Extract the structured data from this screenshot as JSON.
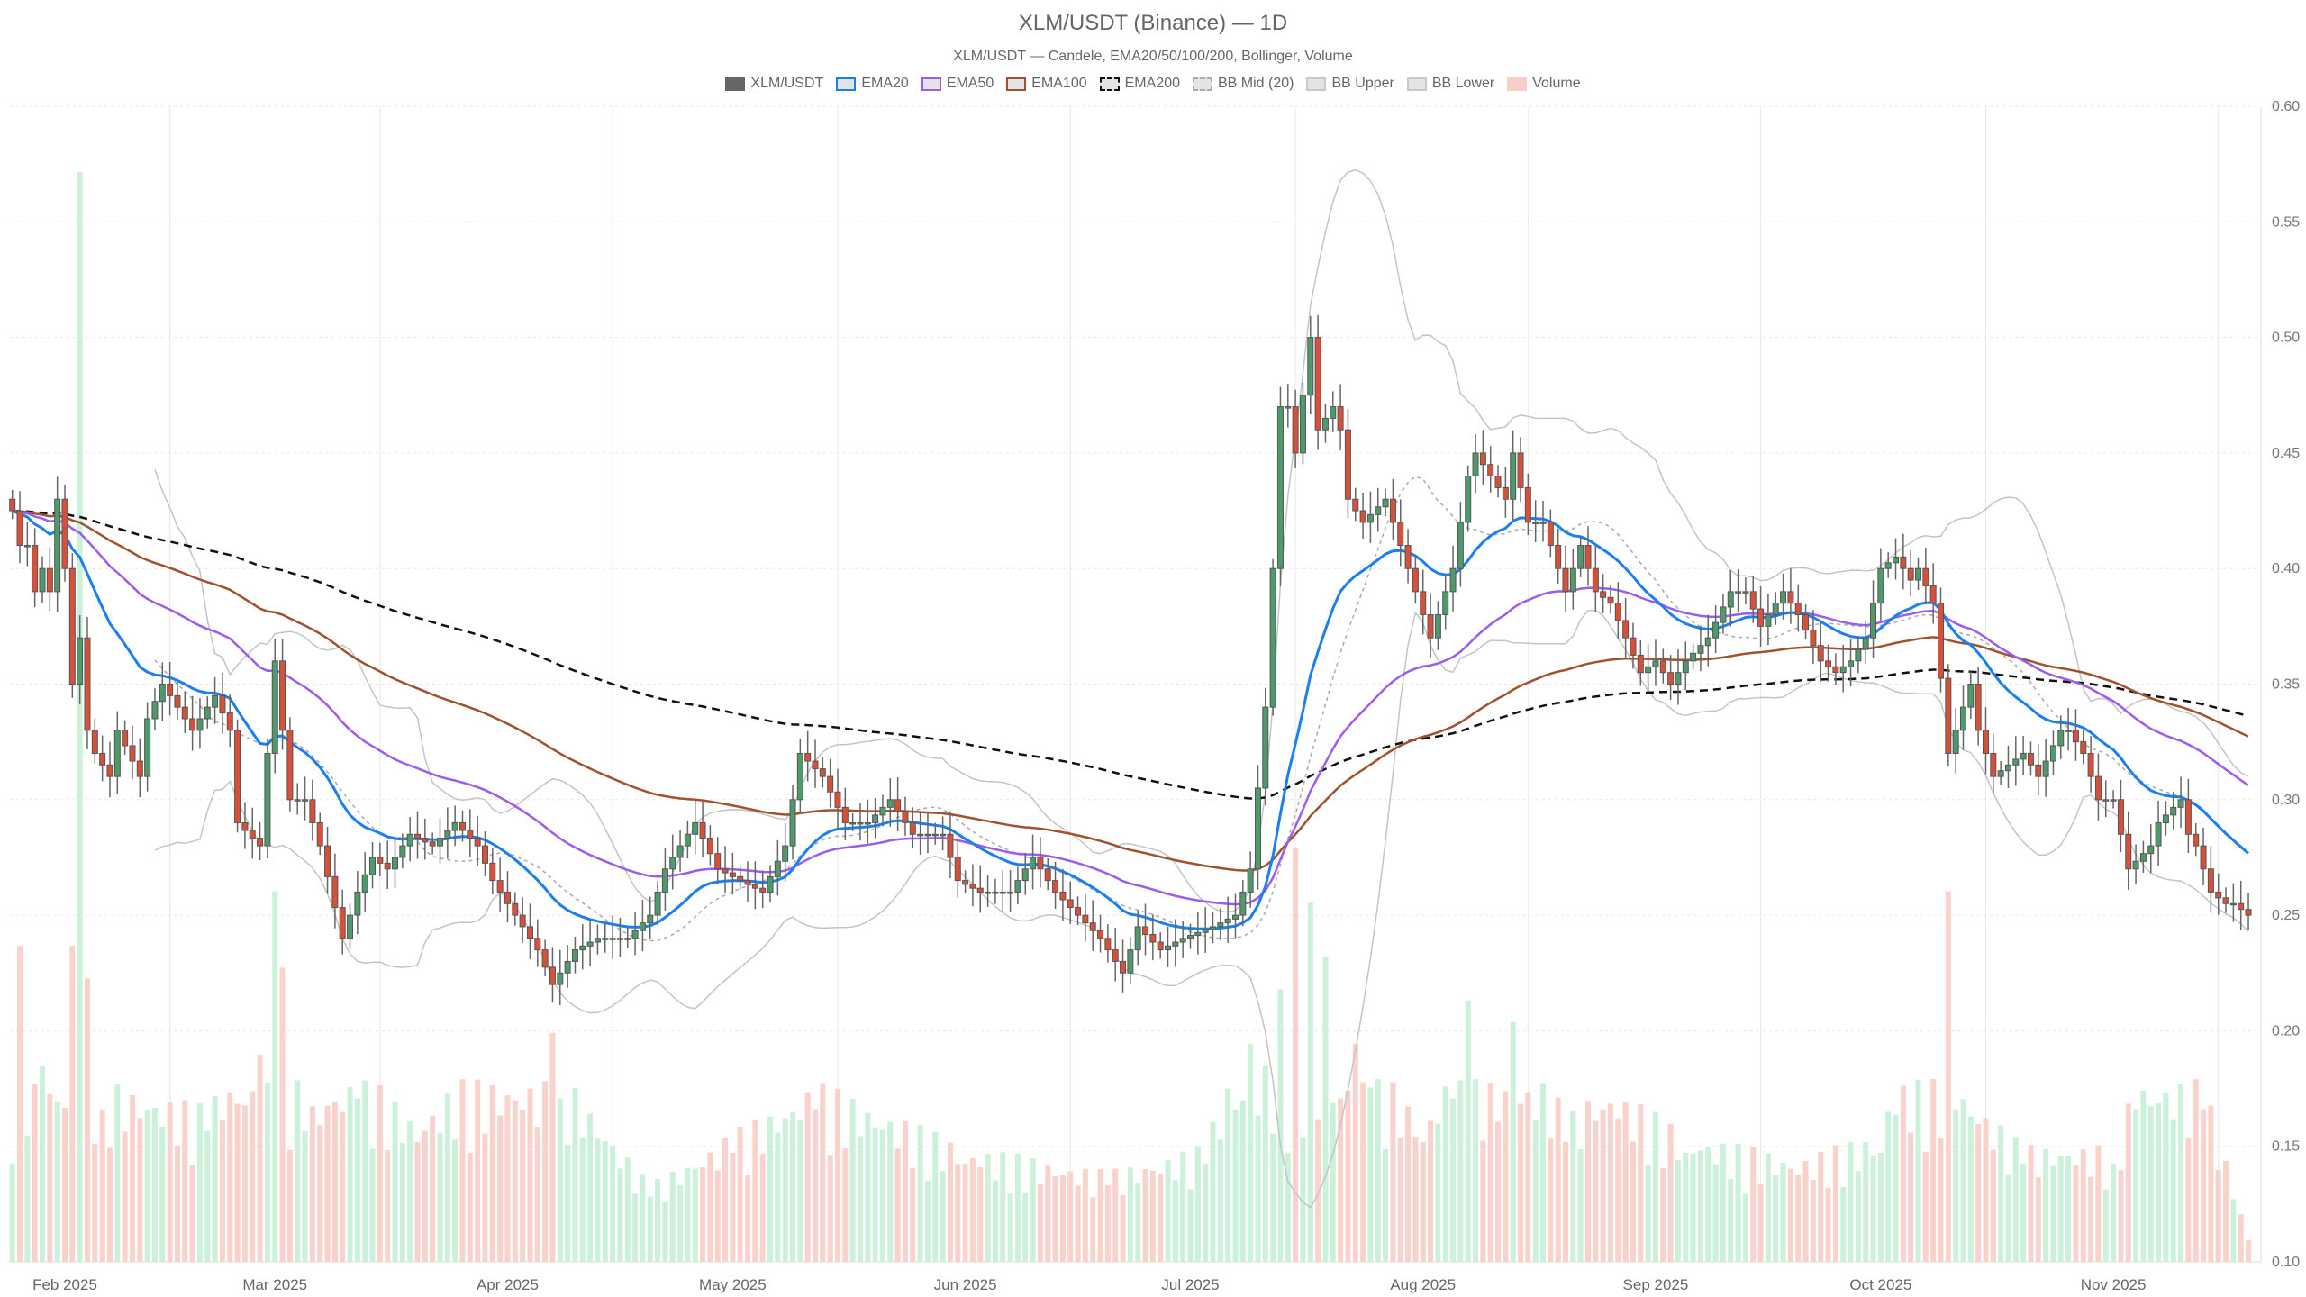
{
  "chart_data": {
    "type": "candlestick",
    "title": "XLM/USDT (Binance) — 1D",
    "subtitle": "XLM/USDT — Candele, EMA20/50/100/200, Bollinger, Volume",
    "legend": [
      {
        "name": "XLM/USDT",
        "color": "#666666",
        "style": "solid"
      },
      {
        "name": "EMA20",
        "color": "#1a7ff0",
        "style": "solid"
      },
      {
        "name": "EMA50",
        "color": "#9b5cf0",
        "style": "solid"
      },
      {
        "name": "EMA100",
        "color": "#a0522d",
        "style": "solid"
      },
      {
        "name": "EMA200",
        "color": "#111111",
        "style": "dashed"
      },
      {
        "name": "BB Mid (20)",
        "color": "#aaaaaa",
        "style": "dashed"
      },
      {
        "name": "BB Upper",
        "color": "#c8c8c8",
        "style": "solid"
      },
      {
        "name": "BB Lower",
        "color": "#c8c8c8",
        "style": "solid"
      },
      {
        "name": "Volume",
        "color": "#f8cfc8",
        "style": "solid"
      }
    ],
    "legend_placement": "top-center",
    "y_axis": {
      "side": "right",
      "range": [
        0.1,
        0.6
      ],
      "ticks": [
        "0.10",
        "0.15",
        "0.20",
        "0.25",
        "0.30",
        "0.35",
        "0.40",
        "0.45",
        "0.50",
        "0.55",
        "0.60"
      ]
    },
    "x_axis": {
      "range": [
        "2025-01-25",
        "2025-11-19"
      ],
      "ticks": [
        {
          "date": "2025-02-01",
          "label": "Feb 2025"
        },
        {
          "date": "2025-03-01",
          "label": "Mar 2025"
        },
        {
          "date": "2025-04-01",
          "label": "Apr 2025"
        },
        {
          "date": "2025-05-01",
          "label": "May 2025"
        },
        {
          "date": "2025-06-01",
          "label": "Jun 2025"
        },
        {
          "date": "2025-07-01",
          "label": "Jul 2025"
        },
        {
          "date": "2025-08-01",
          "label": "Aug 2025"
        },
        {
          "date": "2025-09-01",
          "label": "Sep 2025"
        },
        {
          "date": "2025-10-01",
          "label": "Oct 2025"
        },
        {
          "date": "2025-11-01",
          "label": "Nov 2025"
        }
      ]
    },
    "grid": true,
    "colors": {
      "up": "#4e9a6a",
      "down": "#d9503a",
      "volume_up": "#c6f0d6",
      "volume_down": "#f9cdc6"
    },
    "close": [
      [
        "2025-01-25",
        0.425
      ],
      [
        "2025-01-26",
        0.41
      ],
      [
        "2025-01-27",
        0.41
      ],
      [
        "2025-01-28",
        0.39
      ],
      [
        "2025-01-29",
        0.4
      ],
      [
        "2025-01-30",
        0.39
      ],
      [
        "2025-01-31",
        0.43
      ],
      [
        "2025-02-01",
        0.4
      ],
      [
        "2025-02-02",
        0.35
      ],
      [
        "2025-02-03",
        0.37
      ],
      [
        "2025-02-04",
        0.33
      ],
      [
        "2025-02-05",
        0.32
      ],
      [
        "2025-02-07",
        0.31
      ],
      [
        "2025-02-08",
        0.33
      ],
      [
        "2025-02-11",
        0.31
      ],
      [
        "2025-02-12",
        0.335
      ],
      [
        "2025-02-14",
        0.35
      ],
      [
        "2025-02-16",
        0.34
      ],
      [
        "2025-02-18",
        0.33
      ],
      [
        "2025-02-21",
        0.345
      ],
      [
        "2025-02-23",
        0.33
      ],
      [
        "2025-02-24",
        0.29
      ],
      [
        "2025-02-27",
        0.28
      ],
      [
        "2025-03-01",
        0.36
      ],
      [
        "2025-03-03",
        0.3
      ],
      [
        "2025-03-05",
        0.3
      ],
      [
        "2025-03-07",
        0.28
      ],
      [
        "2025-03-10",
        0.24
      ],
      [
        "2025-03-12",
        0.26
      ],
      [
        "2025-03-14",
        0.275
      ],
      [
        "2025-03-16",
        0.27
      ],
      [
        "2025-03-19",
        0.285
      ],
      [
        "2025-03-22",
        0.28
      ],
      [
        "2025-03-25",
        0.29
      ],
      [
        "2025-03-28",
        0.28
      ],
      [
        "2025-03-30",
        0.265
      ],
      [
        "2025-04-01",
        0.255
      ],
      [
        "2025-04-05",
        0.235
      ],
      [
        "2025-04-07",
        0.22
      ],
      [
        "2025-04-10",
        0.235
      ],
      [
        "2025-04-13",
        0.24
      ],
      [
        "2025-04-17",
        0.24
      ],
      [
        "2025-04-20",
        0.25
      ],
      [
        "2025-04-22",
        0.27
      ],
      [
        "2025-04-24",
        0.28
      ],
      [
        "2025-04-26",
        0.29
      ],
      [
        "2025-04-29",
        0.27
      ],
      [
        "2025-05-02",
        0.265
      ],
      [
        "2025-05-05",
        0.26
      ],
      [
        "2025-05-08",
        0.28
      ],
      [
        "2025-05-10",
        0.32
      ],
      [
        "2025-05-13",
        0.31
      ],
      [
        "2025-05-16",
        0.29
      ],
      [
        "2025-05-19",
        0.29
      ],
      [
        "2025-05-22",
        0.3
      ],
      [
        "2025-05-25",
        0.285
      ],
      [
        "2025-05-29",
        0.285
      ],
      [
        "2025-05-31",
        0.265
      ],
      [
        "2025-06-03",
        0.26
      ],
      [
        "2025-06-07",
        0.26
      ],
      [
        "2025-06-10",
        0.275
      ],
      [
        "2025-06-13",
        0.26
      ],
      [
        "2025-06-16",
        0.25
      ],
      [
        "2025-06-19",
        0.24
      ],
      [
        "2025-06-22",
        0.225
      ],
      [
        "2025-06-24",
        0.245
      ],
      [
        "2025-06-27",
        0.235
      ],
      [
        "2025-06-30",
        0.24
      ],
      [
        "2025-07-04",
        0.245
      ],
      [
        "2025-07-07",
        0.25
      ],
      [
        "2025-07-09",
        0.27
      ],
      [
        "2025-07-11",
        0.34
      ],
      [
        "2025-07-12",
        0.4
      ],
      [
        "2025-07-13",
        0.47
      ],
      [
        "2025-07-14",
        0.47
      ],
      [
        "2025-07-15",
        0.45
      ],
      [
        "2025-07-17",
        0.5
      ],
      [
        "2025-07-18",
        0.46
      ],
      [
        "2025-07-20",
        0.47
      ],
      [
        "2025-07-21",
        0.46
      ],
      [
        "2025-07-22",
        0.43
      ],
      [
        "2025-07-24",
        0.42
      ],
      [
        "2025-07-27",
        0.43
      ],
      [
        "2025-07-29",
        0.41
      ],
      [
        "2025-07-30",
        0.4
      ],
      [
        "2025-08-02",
        0.37
      ],
      [
        "2025-08-04",
        0.39
      ],
      [
        "2025-08-05",
        0.4
      ],
      [
        "2025-08-07",
        0.44
      ],
      [
        "2025-08-08",
        0.45
      ],
      [
        "2025-08-10",
        0.44
      ],
      [
        "2025-08-12",
        0.43
      ],
      [
        "2025-08-13",
        0.45
      ],
      [
        "2025-08-15",
        0.42
      ],
      [
        "2025-08-17",
        0.42
      ],
      [
        "2025-08-19",
        0.4
      ],
      [
        "2025-08-20",
        0.39
      ],
      [
        "2025-08-22",
        0.41
      ],
      [
        "2025-08-24",
        0.39
      ],
      [
        "2025-08-26",
        0.385
      ],
      [
        "2025-08-28",
        0.37
      ],
      [
        "2025-08-30",
        0.355
      ],
      [
        "2025-09-01",
        0.36
      ],
      [
        "2025-09-03",
        0.35
      ],
      [
        "2025-09-05",
        0.36
      ],
      [
        "2025-09-08",
        0.37
      ],
      [
        "2025-09-11",
        0.39
      ],
      [
        "2025-09-13",
        0.39
      ],
      [
        "2025-09-15",
        0.375
      ],
      [
        "2025-09-18",
        0.39
      ],
      [
        "2025-09-20",
        0.38
      ],
      [
        "2025-09-23",
        0.36
      ],
      [
        "2025-09-25",
        0.355
      ],
      [
        "2025-09-27",
        0.36
      ],
      [
        "2025-09-29",
        0.37
      ],
      [
        "2025-10-01",
        0.4
      ],
      [
        "2025-10-03",
        0.405
      ],
      [
        "2025-10-05",
        0.395
      ],
      [
        "2025-10-06",
        0.4
      ],
      [
        "2025-10-08",
        0.385
      ],
      [
        "2025-10-10",
        0.32
      ],
      [
        "2025-10-11",
        0.33
      ],
      [
        "2025-10-13",
        0.35
      ],
      [
        "2025-10-14",
        0.33
      ],
      [
        "2025-10-16",
        0.31
      ],
      [
        "2025-10-18",
        0.315
      ],
      [
        "2025-10-20",
        0.32
      ],
      [
        "2025-10-22",
        0.31
      ],
      [
        "2025-10-25",
        0.33
      ],
      [
        "2025-10-26",
        0.33
      ],
      [
        "2025-10-28",
        0.32
      ],
      [
        "2025-10-30",
        0.3
      ],
      [
        "2025-11-01",
        0.3
      ],
      [
        "2025-11-03",
        0.27
      ],
      [
        "2025-11-06",
        0.28
      ],
      [
        "2025-11-07",
        0.29
      ],
      [
        "2025-11-10",
        0.3
      ],
      [
        "2025-11-11",
        0.285
      ],
      [
        "2025-11-12",
        0.28
      ],
      [
        "2025-11-13",
        0.27
      ],
      [
        "2025-11-14",
        0.26
      ],
      [
        "2025-11-16",
        0.255
      ],
      [
        "2025-11-17",
        0.255
      ],
      [
        "2025-11-19",
        0.25
      ]
    ],
    "volume_relative": [
      [
        "2025-01-25",
        9
      ],
      [
        "2025-01-26",
        29
      ],
      [
        "2025-01-29",
        18
      ],
      [
        "2025-02-02",
        29
      ],
      [
        "2025-02-03",
        100
      ],
      [
        "2025-02-04",
        26
      ],
      [
        "2025-02-06",
        14
      ],
      [
        "2025-02-20",
        12
      ],
      [
        "2025-02-27",
        19
      ],
      [
        "2025-03-01",
        34
      ],
      [
        "2025-03-02",
        27
      ],
      [
        "2025-03-05",
        12
      ],
      [
        "2025-03-12",
        15
      ],
      [
        "2025-03-20",
        11
      ],
      [
        "2025-04-07",
        21
      ],
      [
        "2025-04-08",
        15
      ],
      [
        "2025-04-20",
        6
      ],
      [
        "2025-05-01",
        10
      ],
      [
        "2025-05-10",
        13
      ],
      [
        "2025-05-12",
        14
      ],
      [
        "2025-06-01",
        9
      ],
      [
        "2025-06-20",
        7
      ],
      [
        "2025-07-03",
        9
      ],
      [
        "2025-07-09",
        20
      ],
      [
        "2025-07-11",
        18
      ],
      [
        "2025-07-13",
        25
      ],
      [
        "2025-07-15",
        38
      ],
      [
        "2025-07-17",
        33
      ],
      [
        "2025-07-19",
        28
      ],
      [
        "2025-07-21",
        15
      ],
      [
        "2025-07-23",
        20
      ],
      [
        "2025-07-25",
        16
      ],
      [
        "2025-08-01",
        11
      ],
      [
        "2025-08-05",
        15
      ],
      [
        "2025-08-07",
        24
      ],
      [
        "2025-08-13",
        22
      ],
      [
        "2025-08-20",
        11
      ],
      [
        "2025-08-25",
        14
      ],
      [
        "2025-09-05",
        10
      ],
      [
        "2025-09-20",
        8
      ],
      [
        "2025-10-01",
        10
      ],
      [
        "2025-10-10",
        34
      ],
      [
        "2025-10-11",
        14
      ],
      [
        "2025-10-20",
        9
      ],
      [
        "2025-11-01",
        9
      ],
      [
        "2025-11-04",
        14
      ],
      [
        "2025-11-13",
        14
      ],
      [
        "2025-11-19",
        2
      ]
    ]
  }
}
